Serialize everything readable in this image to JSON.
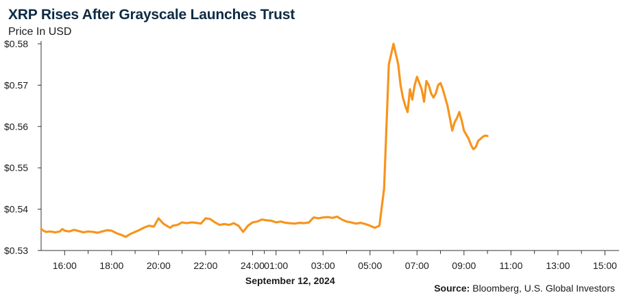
{
  "header": {
    "title": "XRP Rises After Grayscale Launches Trust",
    "subtitle": "Price In USD"
  },
  "footer": {
    "source_label": "Source:",
    "source_text": "Bloomberg, U.S. Global Investors"
  },
  "chart_data": {
    "type": "line",
    "title": "XRP Rises After Grayscale Launches Trust",
    "subtitle": "Price In USD",
    "xlabel": "September 12, 2024",
    "ylabel": "",
    "color": "#f7941d",
    "ylim": [
      0.53,
      0.58
    ],
    "yticks": [
      0.53,
      0.54,
      0.55,
      0.56,
      0.57,
      0.58
    ],
    "ytick_labels": [
      "$0.53",
      "$0.54",
      "$0.55",
      "$0.56",
      "$0.57",
      "$0.58"
    ],
    "xlim": [
      15.0,
      39.6
    ],
    "xticks": [
      16,
      18,
      20,
      22,
      24,
      25,
      27,
      29,
      31,
      33,
      35,
      37,
      39
    ],
    "xtick_labels": [
      "16:00",
      "18:00",
      "20:00",
      "22:00",
      "24:00",
      "01:00",
      "03:00",
      "05:00",
      "07:00",
      "09:00",
      "11:00",
      "13:00",
      "15:00"
    ],
    "series": [
      {
        "x": [
          15.0,
          15.1,
          15.2,
          15.4,
          15.6,
          15.8,
          15.9,
          16.0,
          16.2,
          16.4,
          16.6,
          16.8,
          17.0,
          17.2,
          17.4,
          17.6,
          17.8,
          18.0,
          18.2,
          18.4,
          18.6,
          18.8,
          19.0,
          19.2,
          19.4,
          19.6,
          19.8,
          20.0,
          20.2,
          20.4,
          20.5,
          20.6,
          20.8,
          21.0,
          21.2,
          21.4,
          21.6,
          21.8,
          22.0,
          22.2,
          22.4,
          22.6,
          22.8,
          23.0,
          23.2,
          23.4,
          23.6,
          23.8,
          24.0,
          24.2,
          24.4,
          24.6,
          24.8,
          25.0,
          25.2,
          25.4,
          25.6,
          25.8,
          26.0,
          26.2,
          26.4,
          26.6,
          26.8,
          27.0,
          27.2,
          27.4,
          27.6,
          27.8,
          28.0,
          28.2,
          28.4,
          28.6,
          28.8,
          29.0,
          29.2,
          29.4,
          29.6,
          29.8,
          30.0,
          30.2,
          30.3,
          30.4,
          30.5,
          30.6,
          30.7,
          30.8,
          30.9,
          31.0,
          31.1,
          31.2,
          31.3,
          31.4,
          31.5,
          31.6,
          31.7,
          31.8,
          31.9,
          32.0,
          32.1,
          32.2,
          32.3,
          32.4,
          32.5,
          32.6,
          32.7,
          32.8,
          32.9,
          33.0,
          33.1,
          33.2,
          33.3,
          33.4,
          33.5,
          33.6,
          33.7,
          33.8,
          33.9,
          34.0
        ],
        "values": [
          0.5352,
          0.5348,
          0.5345,
          0.5346,
          0.5344,
          0.5346,
          0.5352,
          0.5348,
          0.5346,
          0.535,
          0.5347,
          0.5344,
          0.5346,
          0.5345,
          0.5343,
          0.5346,
          0.5349,
          0.5348,
          0.5342,
          0.5338,
          0.5333,
          0.534,
          0.5345,
          0.535,
          0.5356,
          0.536,
          0.5358,
          0.5378,
          0.5365,
          0.5358,
          0.5355,
          0.536,
          0.5362,
          0.5368,
          0.5366,
          0.5368,
          0.5367,
          0.5365,
          0.5378,
          0.5376,
          0.5368,
          0.5362,
          0.5364,
          0.5362,
          0.5366,
          0.536,
          0.5345,
          0.536,
          0.5368,
          0.537,
          0.5375,
          0.5373,
          0.5372,
          0.5368,
          0.537,
          0.5367,
          0.5366,
          0.5365,
          0.5367,
          0.5366,
          0.5368,
          0.538,
          0.5378,
          0.538,
          0.5381,
          0.5379,
          0.5382,
          0.5375,
          0.537,
          0.5368,
          0.5365,
          0.5367,
          0.5364,
          0.536,
          0.5355,
          0.536,
          0.545,
          0.575,
          0.58,
          0.575,
          0.57,
          0.567,
          0.565,
          0.5635,
          0.569,
          0.5665,
          0.57,
          0.572,
          0.5705,
          0.569,
          0.566,
          0.571,
          0.57,
          0.568,
          0.567,
          0.568,
          0.57,
          0.5705,
          0.569,
          0.567,
          0.565,
          0.562,
          0.559,
          0.561,
          0.562,
          0.5635,
          0.5615,
          0.559,
          0.558,
          0.557,
          0.5555,
          0.5545,
          0.555,
          0.5565,
          0.557,
          0.5575,
          0.5578,
          0.5577
        ]
      }
    ]
  }
}
